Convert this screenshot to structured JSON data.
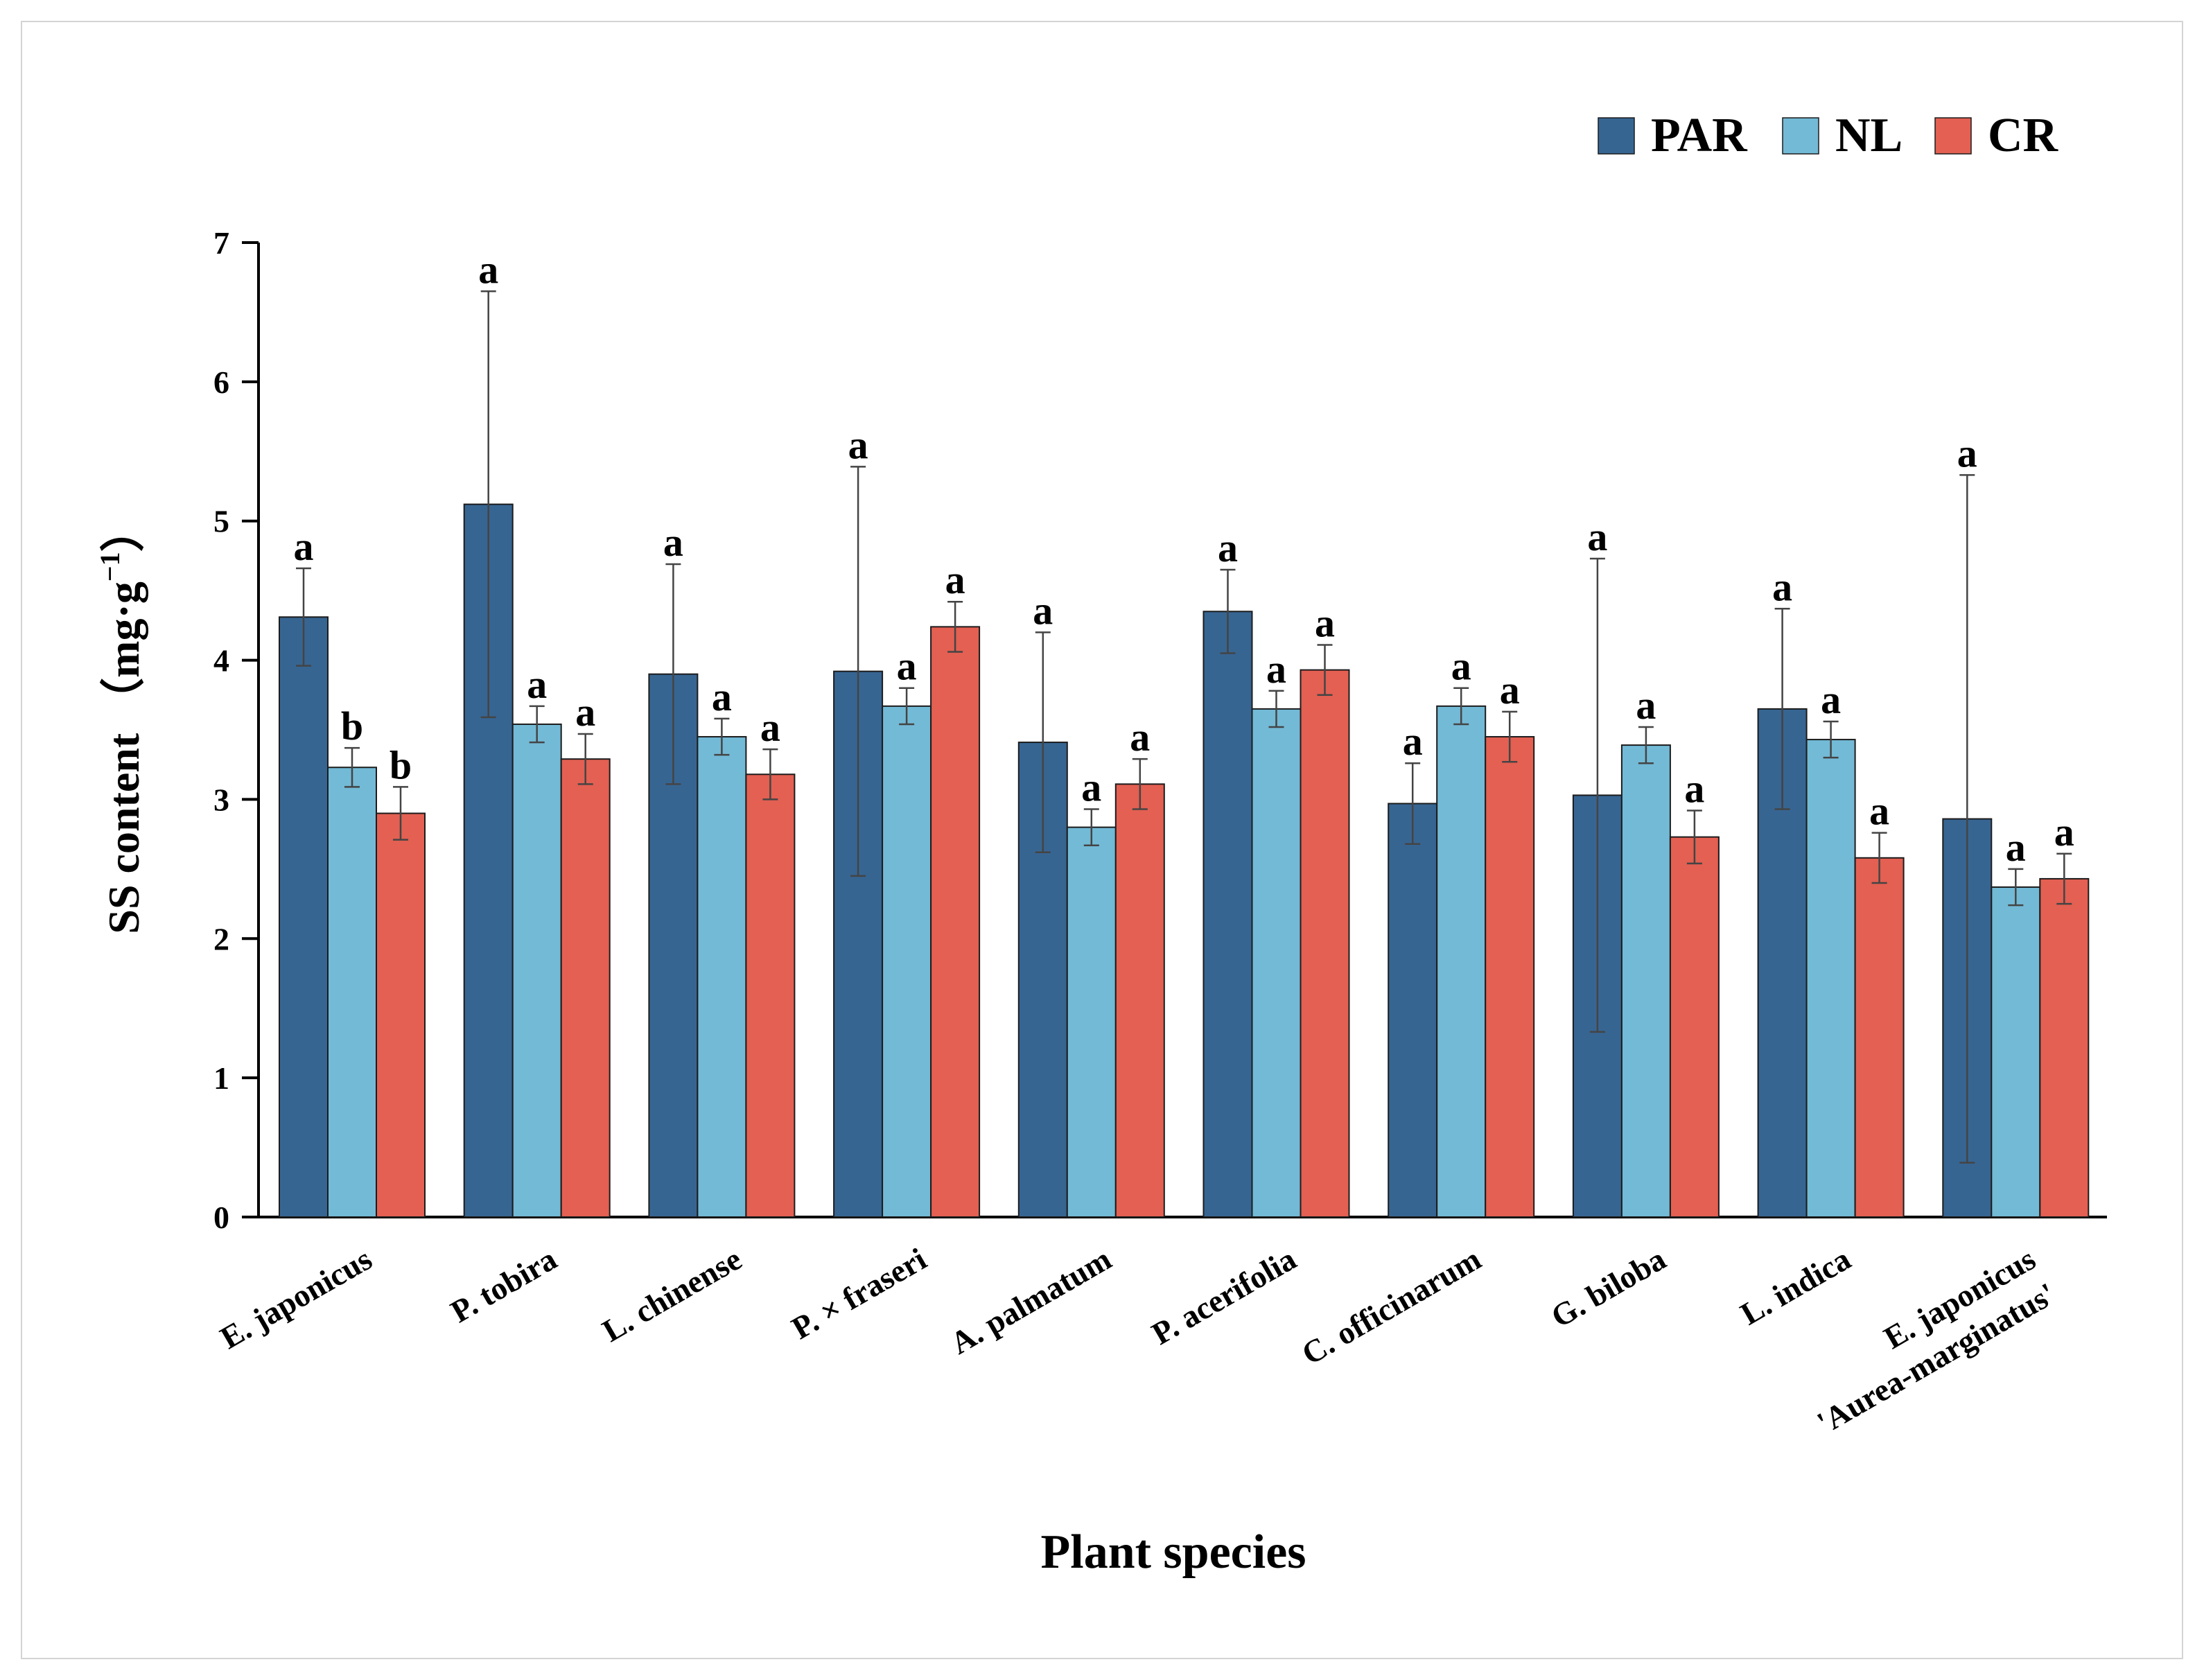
{
  "chart_data": {
    "type": "bar",
    "xlabel": "Plant species",
    "ylabel": "SS content （mg·g",
    "ylabel_sup": "−1",
    "ylabel_close": "）",
    "ylim": [
      0,
      7
    ],
    "yticks": [
      "0",
      "1",
      "2",
      "3",
      "4",
      "5",
      "6",
      "7"
    ],
    "grid": false,
    "legend_position": "top-right",
    "categories": [
      [
        "E. japonicus"
      ],
      [
        "P. tobira"
      ],
      [
        "L. chinense"
      ],
      [
        "P. × fraseri"
      ],
      [
        "A. palmatum"
      ],
      [
        "P. acerifolia"
      ],
      [
        "C. officinarum"
      ],
      [
        "G. biloba"
      ],
      [
        "L. indica"
      ],
      [
        "E. japonicus",
        "'Aurea-marginatus'"
      ]
    ],
    "series": [
      {
        "name": "PAR",
        "color": "#376592",
        "values": [
          4.31,
          5.12,
          3.9,
          3.92,
          3.41,
          4.35,
          2.97,
          3.03,
          3.65,
          2.86
        ],
        "errors": [
          0.35,
          1.53,
          0.79,
          1.47,
          0.79,
          0.3,
          0.29,
          1.7,
          0.72,
          2.47
        ],
        "labels": [
          "a",
          "a",
          "a",
          "a",
          "a",
          "a",
          "a",
          "a",
          "a",
          "a"
        ]
      },
      {
        "name": "NL",
        "color": "#73bad6",
        "values": [
          3.23,
          3.54,
          3.45,
          3.67,
          2.8,
          3.65,
          3.67,
          3.39,
          3.43,
          2.37
        ],
        "errors": [
          0.14,
          0.13,
          0.13,
          0.13,
          0.13,
          0.13,
          0.13,
          0.13,
          0.13,
          0.13
        ],
        "labels": [
          "b",
          "a",
          "a",
          "a",
          "a",
          "a",
          "a",
          "a",
          "a",
          "a"
        ]
      },
      {
        "name": "CR",
        "color": "#e36052",
        "values": [
          2.9,
          3.29,
          3.18,
          4.24,
          3.11,
          3.93,
          3.45,
          2.73,
          2.58,
          2.43
        ],
        "errors": [
          0.19,
          0.18,
          0.18,
          0.18,
          0.18,
          0.18,
          0.18,
          0.19,
          0.18,
          0.18
        ],
        "labels": [
          "b",
          "a",
          "a",
          "a",
          "a",
          "a",
          "a",
          "a",
          "a",
          "a"
        ]
      }
    ]
  }
}
